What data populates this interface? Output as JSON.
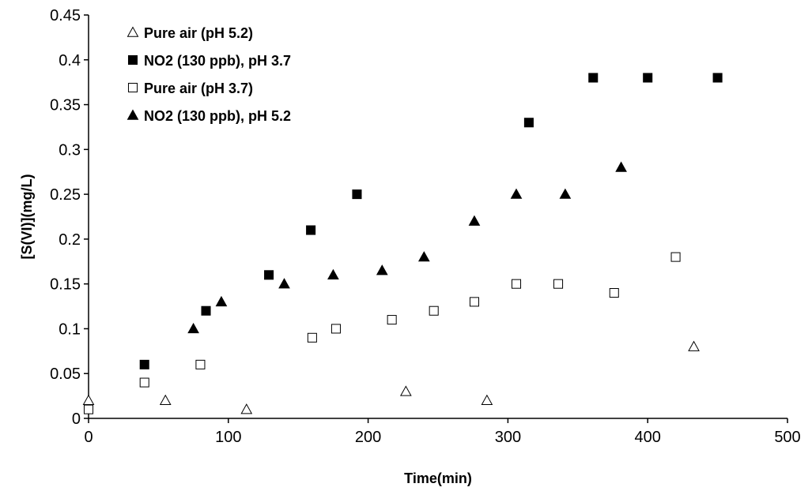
{
  "chart_data": {
    "type": "scatter",
    "title": "",
    "xlabel": "Time(min)",
    "ylabel": "[S(VI)](mg/L)",
    "xlim": [
      0,
      500
    ],
    "ylim": [
      0,
      0.45
    ],
    "x_ticks": [
      "0",
      "100",
      "200",
      "300",
      "400",
      "500"
    ],
    "y_ticks": [
      "0",
      "0.05",
      "0.1",
      "0.15",
      "0.2",
      "0.25",
      "0.3",
      "0.35",
      "0.4",
      "0.45"
    ],
    "grid": false,
    "legend_position": "top-left",
    "series": [
      {
        "name": "Pure air (pH 5.2)",
        "marker": "triangle-open",
        "color": "#000000",
        "points": [
          [
            0,
            0.02
          ],
          [
            55,
            0.02
          ],
          [
            113,
            0.01
          ],
          [
            227,
            0.03
          ],
          [
            285,
            0.02
          ],
          [
            433,
            0.08
          ]
        ]
      },
      {
        "name": "NO2 (130 ppb), pH 3.7",
        "marker": "square-filled",
        "color": "#000000",
        "points": [
          [
            40,
            0.06
          ],
          [
            84,
            0.12
          ],
          [
            129,
            0.16
          ],
          [
            159,
            0.21
          ],
          [
            192,
            0.25
          ],
          [
            315,
            0.33
          ],
          [
            361,
            0.38
          ],
          [
            400,
            0.38
          ],
          [
            450,
            0.38
          ]
        ]
      },
      {
        "name": "Pure air (pH 3.7)",
        "marker": "square-open",
        "color": "#000000",
        "points": [
          [
            0,
            0.01
          ],
          [
            40,
            0.04
          ],
          [
            80,
            0.06
          ],
          [
            160,
            0.09
          ],
          [
            177,
            0.1
          ],
          [
            217,
            0.11
          ],
          [
            247,
            0.12
          ],
          [
            276,
            0.13
          ],
          [
            306,
            0.15
          ],
          [
            336,
            0.15
          ],
          [
            376,
            0.14
          ],
          [
            420,
            0.18
          ]
        ]
      },
      {
        "name": "NO2 (130 ppb), pH 5.2",
        "marker": "triangle-filled",
        "color": "#000000",
        "points": [
          [
            75,
            0.1
          ],
          [
            95,
            0.13
          ],
          [
            140,
            0.15
          ],
          [
            175,
            0.16
          ],
          [
            210,
            0.165
          ],
          [
            240,
            0.18
          ],
          [
            276,
            0.22
          ],
          [
            306,
            0.25
          ],
          [
            341,
            0.25
          ],
          [
            381,
            0.28
          ]
        ]
      }
    ]
  }
}
